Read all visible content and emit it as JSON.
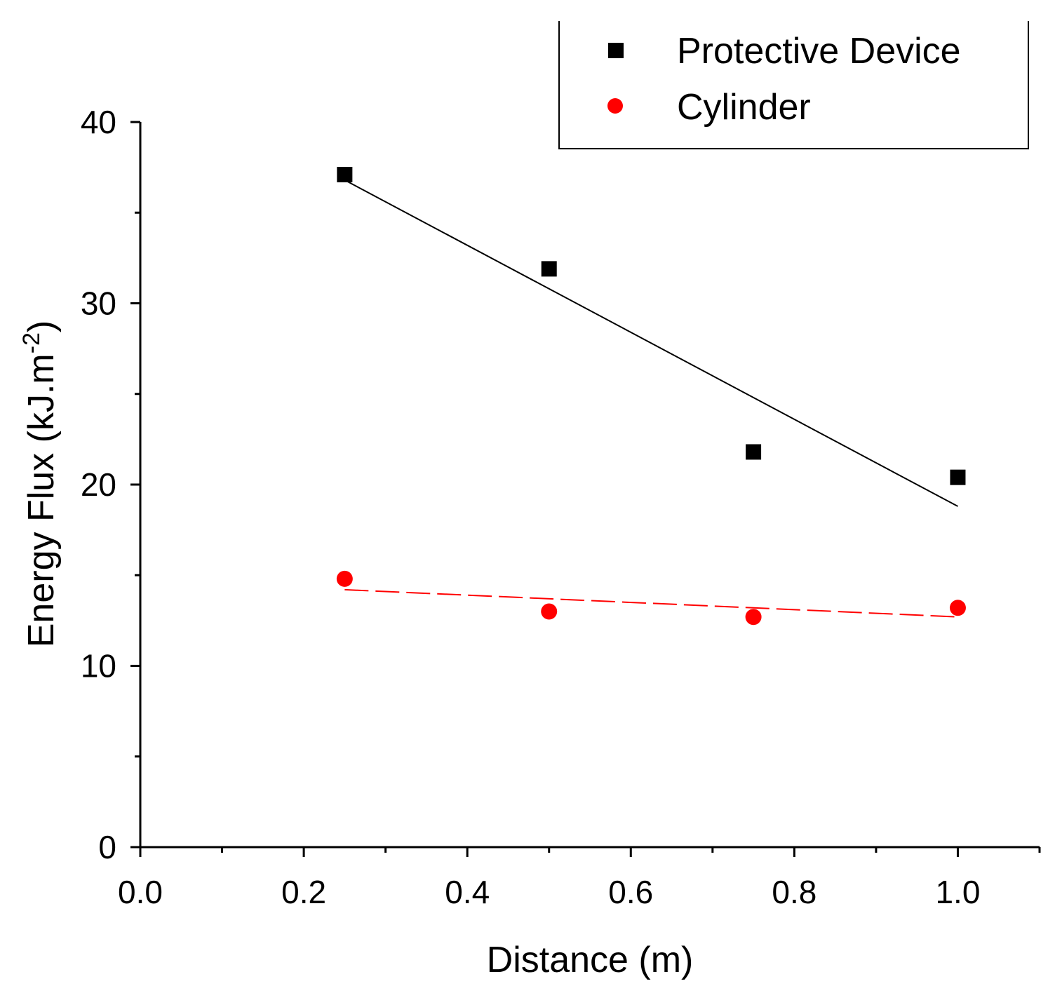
{
  "chart_data": {
    "type": "scatter",
    "title": "",
    "xlabel": "Distance (m)",
    "ylabel_main": "Energy Flux (kJ.m",
    "ylabel_sup": "-2",
    "ylabel_close": ")",
    "xlim": [
      0.0,
      1.1
    ],
    "ylim": [
      0,
      40
    ],
    "x_ticks": [
      {
        "value": 0.0,
        "label": "0.0"
      },
      {
        "value": 0.2,
        "label": "0.2"
      },
      {
        "value": 0.4,
        "label": "0.4"
      },
      {
        "value": 0.6,
        "label": "0.6"
      },
      {
        "value": 0.8,
        "label": "0.8"
      },
      {
        "value": 1.0,
        "label": "1.0"
      }
    ],
    "x_minor_ticks": [
      0.1,
      0.3,
      0.5,
      0.7,
      0.9,
      1.1
    ],
    "y_ticks": [
      {
        "value": 0,
        "label": "0"
      },
      {
        "value": 10,
        "label": "10"
      },
      {
        "value": 20,
        "label": "20"
      },
      {
        "value": 30,
        "label": "30"
      },
      {
        "value": 40,
        "label": "40"
      }
    ],
    "y_minor_ticks": [
      5,
      15,
      25,
      35
    ],
    "grid": false,
    "legend_position": "top-right",
    "series": [
      {
        "name": "Protective Device",
        "marker": "square",
        "color": "#000000",
        "x": [
          0.25,
          0.5,
          0.75,
          1.0
        ],
        "y": [
          37.1,
          31.9,
          21.8,
          20.4
        ],
        "fit": {
          "style": "solid",
          "x": [
            0.25,
            1.0
          ],
          "y": [
            36.8,
            18.8
          ]
        }
      },
      {
        "name": "Cylinder",
        "marker": "circle",
        "color": "#ff0000",
        "x": [
          0.25,
          0.5,
          0.75,
          1.0
        ],
        "y": [
          14.8,
          13.0,
          12.7,
          13.2
        ],
        "fit": {
          "style": "dashed",
          "x": [
            0.25,
            1.0
          ],
          "y": [
            14.2,
            12.7
          ]
        }
      }
    ]
  }
}
